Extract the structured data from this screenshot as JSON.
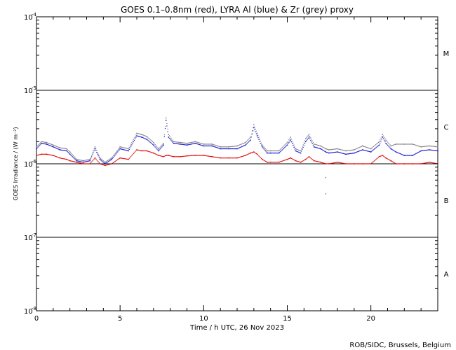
{
  "chart_data": {
    "type": "scatter",
    "title": "GOES 0.1–0.8nm (red), LYRA Al (blue) & Zr (grey) proxy",
    "xlabel": "Time / h UTC, 26 Nov 2023",
    "ylabel": "GOES Irradiance / (W m⁻²)",
    "xlim": [
      0,
      24
    ],
    "ylim": [
      1e-08,
      0.0001
    ],
    "yscale": "log",
    "x_ticks": [
      0,
      5,
      10,
      15,
      20
    ],
    "x_tick_labels": [
      "0",
      "5",
      "10",
      "15",
      "20"
    ],
    "y_ticks": [
      1e-08,
      1e-07,
      1e-06,
      1e-05,
      0.0001
    ],
    "y_tick_labels": [
      {
        "base": "10",
        "exp": "-8"
      },
      {
        "base": "10",
        "exp": "-7"
      },
      {
        "base": "10",
        "exp": "-6"
      },
      {
        "base": "10",
        "exp": "-5"
      },
      {
        "base": "10",
        "exp": "-4"
      }
    ],
    "class_lines": [
      1e-07,
      1e-06,
      1e-05
    ],
    "flare_classes": [
      {
        "label": "A",
        "level": 3.2e-08
      },
      {
        "label": "B",
        "level": 3.2e-07
      },
      {
        "label": "C",
        "level": 3.2e-06
      },
      {
        "label": "M",
        "level": 3.2e-05
      }
    ],
    "series": [
      {
        "name": "GOES 0.1–0.8nm",
        "color": "#e00000",
        "x": [
          0,
          0.3,
          0.6,
          1.0,
          1.4,
          1.8,
          2.0,
          2.4,
          2.8,
          3.2,
          3.5,
          3.8,
          4.1,
          4.5,
          5.0,
          5.5,
          6.0,
          6.3,
          6.6,
          7.0,
          7.3,
          7.6,
          7.75,
          7.9,
          8.2,
          8.6,
          9.0,
          9.5,
          10.0,
          10.5,
          11.0,
          11.5,
          12.0,
          12.5,
          12.8,
          13.0,
          13.2,
          13.5,
          13.8,
          14.0,
          14.5,
          15.0,
          15.2,
          15.5,
          15.8,
          16.1,
          16.3,
          16.6,
          17.0,
          17.3,
          17.5,
          18.0,
          18.5,
          19.0,
          19.5,
          20.0,
          20.5,
          20.7,
          20.9,
          21.2,
          21.5,
          22.0,
          22.5,
          23.0,
          23.5,
          24.0
        ],
        "y": [
          1.3e-06,
          1.35e-06,
          1.35e-06,
          1.3e-06,
          1.2e-06,
          1.15e-06,
          1.1e-06,
          1.05e-06,
          1e-06,
          1e-06,
          1.2e-06,
          1e-06,
          9.5e-07,
          1e-06,
          1.2e-06,
          1.15e-06,
          1.55e-06,
          1.5e-06,
          1.5e-06,
          1.4e-06,
          1.3e-06,
          1.25e-06,
          1.3e-06,
          1.3e-06,
          1.25e-06,
          1.25e-06,
          1.28e-06,
          1.3e-06,
          1.3e-06,
          1.25e-06,
          1.2e-06,
          1.2e-06,
          1.2e-06,
          1.3e-06,
          1.4e-06,
          1.45e-06,
          1.35e-06,
          1.15e-06,
          1.05e-06,
          1.05e-06,
          1.05e-06,
          1.15e-06,
          1.2e-06,
          1.1e-06,
          1.05e-06,
          1.15e-06,
          1.25e-06,
          1.1e-06,
          1.05e-06,
          1e-06,
          1e-06,
          1.05e-06,
          1e-06,
          1e-06,
          1e-06,
          1e-06,
          1.25e-06,
          1.3e-06,
          1.2e-06,
          1.1e-06,
          1e-06,
          1e-06,
          1e-06,
          1e-06,
          1.05e-06,
          1e-06
        ]
      },
      {
        "name": "LYRA Al proxy",
        "color": "#1010d0",
        "x": [
          0,
          0.3,
          0.6,
          1.0,
          1.4,
          1.8,
          2.0,
          2.4,
          2.8,
          3.2,
          3.5,
          3.8,
          4.1,
          4.5,
          5.0,
          5.5,
          6.0,
          6.3,
          6.6,
          7.0,
          7.3,
          7.6,
          7.75,
          7.9,
          8.2,
          8.6,
          9.0,
          9.5,
          10.0,
          10.5,
          11.0,
          11.5,
          12.0,
          12.5,
          12.8,
          13.0,
          13.2,
          13.5,
          13.8,
          14.0,
          14.5,
          15.0,
          15.2,
          15.5,
          15.8,
          16.1,
          16.3,
          16.6,
          17.0,
          17.3,
          17.5,
          18.0,
          18.5,
          19.0,
          19.5,
          20.0,
          20.5,
          20.7,
          20.9,
          21.2,
          21.5,
          22.0,
          22.5,
          23.0,
          23.5,
          24.0
        ],
        "y": [
          1.6e-06,
          1.9e-06,
          1.85e-06,
          1.7e-06,
          1.55e-06,
          1.5e-06,
          1.35e-06,
          1.1e-06,
          1.05e-06,
          1.1e-06,
          1.6e-06,
          1.15e-06,
          1e-06,
          1.15e-06,
          1.6e-06,
          1.5e-06,
          2.4e-06,
          2.3e-06,
          2.15e-06,
          1.8e-06,
          1.5e-06,
          1.8e-06,
          3.9e-06,
          2.3e-06,
          1.9e-06,
          1.85e-06,
          1.8e-06,
          1.9e-06,
          1.75e-06,
          1.75e-06,
          1.6e-06,
          1.6e-06,
          1.6e-06,
          1.8e-06,
          2.1e-06,
          3.1e-06,
          2.4e-06,
          1.7e-06,
          1.4e-06,
          1.4e-06,
          1.4e-06,
          1.8e-06,
          2.1e-06,
          1.5e-06,
          1.4e-06,
          2e-06,
          2.3e-06,
          1.7e-06,
          1.6e-06,
          1.45e-06,
          1.4e-06,
          1.45e-06,
          1.35e-06,
          1.4e-06,
          1.55e-06,
          1.45e-06,
          1.8e-06,
          2.3e-06,
          1.9e-06,
          1.6e-06,
          1.45e-06,
          1.3e-06,
          1.3e-06,
          1.5e-06,
          1.55e-06,
          1.5e-06
        ]
      },
      {
        "name": "LYRA Zr proxy",
        "color": "#808080",
        "x": [
          0,
          0.3,
          0.6,
          1.0,
          1.4,
          1.8,
          2.0,
          2.4,
          2.8,
          3.2,
          3.5,
          3.8,
          4.1,
          4.5,
          5.0,
          5.5,
          6.0,
          6.3,
          6.6,
          7.0,
          7.3,
          7.6,
          7.75,
          7.9,
          8.2,
          8.6,
          9.0,
          9.5,
          10.0,
          10.5,
          11.0,
          11.5,
          12.0,
          12.5,
          12.8,
          13.0,
          13.2,
          13.5,
          13.8,
          14.0,
          14.5,
          15.0,
          15.2,
          15.5,
          15.8,
          16.1,
          16.3,
          16.6,
          17.0,
          17.3,
          17.5,
          18.0,
          18.5,
          19.0,
          19.5,
          20.0,
          20.5,
          20.7,
          20.9,
          21.2,
          21.5,
          22.0,
          22.5,
          23.0,
          23.5,
          24.0
        ],
        "y": [
          1.7e-06,
          2e-06,
          1.95e-06,
          1.8e-06,
          1.65e-06,
          1.6e-06,
          1.45e-06,
          1.15e-06,
          1.1e-06,
          1.15e-06,
          1.7e-06,
          1.2e-06,
          1.05e-06,
          1.2e-06,
          1.7e-06,
          1.6e-06,
          2.6e-06,
          2.5e-06,
          2.35e-06,
          1.95e-06,
          1.6e-06,
          1.9e-06,
          4.2e-06,
          2.5e-06,
          2e-06,
          1.95e-06,
          1.9e-06,
          2e-06,
          1.85e-06,
          1.85e-06,
          1.7e-06,
          1.7e-06,
          1.75e-06,
          1.95e-06,
          2.3e-06,
          3.4e-06,
          2.6e-06,
          1.8e-06,
          1.5e-06,
          1.5e-06,
          1.5e-06,
          1.95e-06,
          2.3e-06,
          1.6e-06,
          1.5e-06,
          2.2e-06,
          2.5e-06,
          1.85e-06,
          1.75e-06,
          1.6e-06,
          1.55e-06,
          1.6e-06,
          1.5e-06,
          1.55e-06,
          1.75e-06,
          1.6e-06,
          2e-06,
          2.5e-06,
          2.1e-06,
          1.75e-06,
          1.85e-06,
          1.85e-06,
          1.85e-06,
          1.7e-06,
          1.75e-06,
          1.7e-06
        ]
      }
    ],
    "outliers": [
      {
        "x": 17.3,
        "y": 3.9e-07,
        "color": "#808080"
      },
      {
        "x": 17.3,
        "y": 6.5e-07,
        "color": "#808080"
      }
    ]
  },
  "credit": "ROB/SIDC, Brussels, Belgium"
}
